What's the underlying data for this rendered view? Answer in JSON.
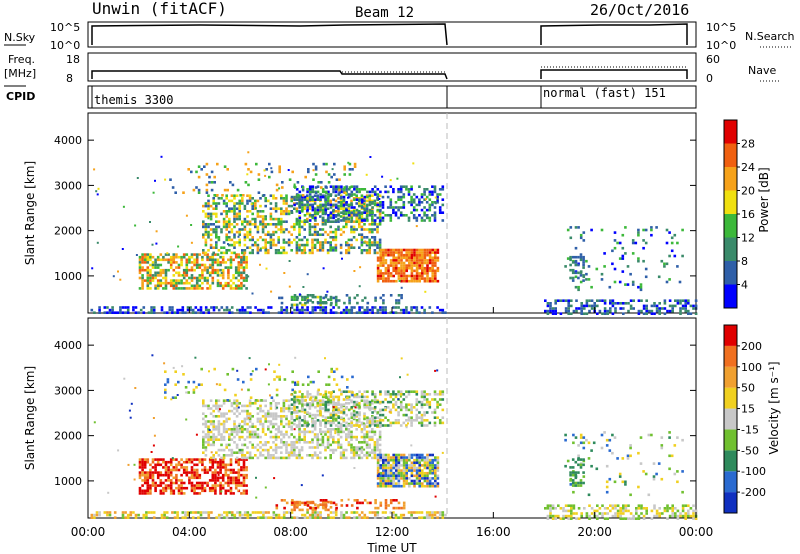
{
  "header": {
    "radar": "Unwin (fitACF)",
    "beam": "Beam 12",
    "date": "26/Oct/2016"
  },
  "top_panels": {
    "nsky_label": "N.Sky",
    "nsky_ticks": [
      "10^5",
      "10^0"
    ],
    "freq_label_1": "Freq.",
    "freq_label_2": "[MHz]",
    "freq_ticks": [
      "18",
      "8"
    ],
    "right_ticks_top": [
      "10^5",
      "10^0"
    ],
    "right_ticks_freq": [
      "60",
      "0"
    ],
    "nsearch_label": "N.Search",
    "nave_label": "Nave",
    "cpid_label": "CPID",
    "cpid_1": "themis 3300",
    "cpid_2": "normal (fast) 151"
  },
  "chart_data": [
    {
      "type": "heatmap",
      "title": "",
      "ylabel": "Slant Range [km]",
      "xlabel": "",
      "xlim": [
        0,
        24
      ],
      "ylim": [
        180,
        4600
      ],
      "yticks": [
        "1000",
        "2000",
        "3000",
        "4000"
      ],
      "colorbar": {
        "label": "Power [dB]",
        "ticks": [
          "4",
          "8",
          "12",
          "16",
          "20",
          "24",
          "28"
        ],
        "colors": [
          "#0000ff",
          "#2f5fa8",
          "#3a8a6a",
          "#3cb83a",
          "#f0e010",
          "#f6a21a",
          "#f06010",
          "#e00000"
        ]
      },
      "data_gap_hours": [
        14.2,
        18.0
      ]
    },
    {
      "type": "heatmap",
      "title": "",
      "ylabel": "Slant Range [km]",
      "xlabel": "Time UT",
      "xlim": [
        0,
        24
      ],
      "ylim": [
        180,
        4600
      ],
      "yticks": [
        "1000",
        "2000",
        "3000",
        "4000"
      ],
      "xticks": [
        "00:00",
        "04:00",
        "08:00",
        "12:00",
        "16:00",
        "20:00",
        "00:00"
      ],
      "colorbar": {
        "label": "Velocity [m s⁻¹]",
        "ticks": [
          "200",
          "100",
          "50",
          "15",
          "-15",
          "-50",
          "-100",
          "-200"
        ],
        "colors": [
          "#1030c0",
          "#2a6ad0",
          "#2e8a5c",
          "#70c030",
          "#c8c8c8",
          "#f0d020",
          "#f0a030",
          "#f07020",
          "#e00000"
        ]
      },
      "data_gap_hours": [
        14.2,
        18.0
      ]
    }
  ]
}
